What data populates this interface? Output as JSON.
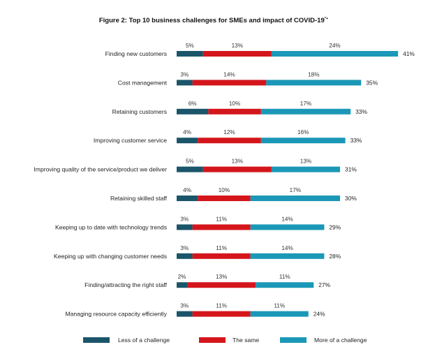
{
  "chart_data": {
    "type": "bar",
    "stacked": true,
    "orientation": "horizontal",
    "title": "Figure 2: Top 10 business challenges for SMEs and impact of COVID-19",
    "title_marker": "*+",
    "categories": [
      "Finding new customers",
      "Cost management",
      "Retaining customers",
      "Improving customer service",
      "Improving quality of the service/product we deliver",
      "Retaining skilled staff",
      "Keeping up to date with technology trends",
      "Keeping up with changing customer needs",
      "Finding/attracting the right staff",
      "Managing resource capacity efficiently"
    ],
    "series": [
      {
        "name": "Less of a challenge",
        "color": "#1a5569",
        "values": [
          5,
          3,
          6,
          4,
          5,
          4,
          3,
          3,
          2,
          3
        ]
      },
      {
        "name": "The same",
        "color": "#d4161c",
        "values": [
          13,
          14,
          10,
          12,
          13,
          10,
          11,
          11,
          13,
          11
        ]
      },
      {
        "name": "More of a challenge",
        "color": "#1b98b7",
        "values": [
          24,
          18,
          17,
          16,
          13,
          17,
          14,
          14,
          11,
          11
        ]
      }
    ],
    "totals": [
      41,
      35,
      33,
      33,
      31,
      30,
      29,
      28,
      27,
      24
    ],
    "value_suffix": "%",
    "legend_position": "bottom",
    "grid": false
  }
}
